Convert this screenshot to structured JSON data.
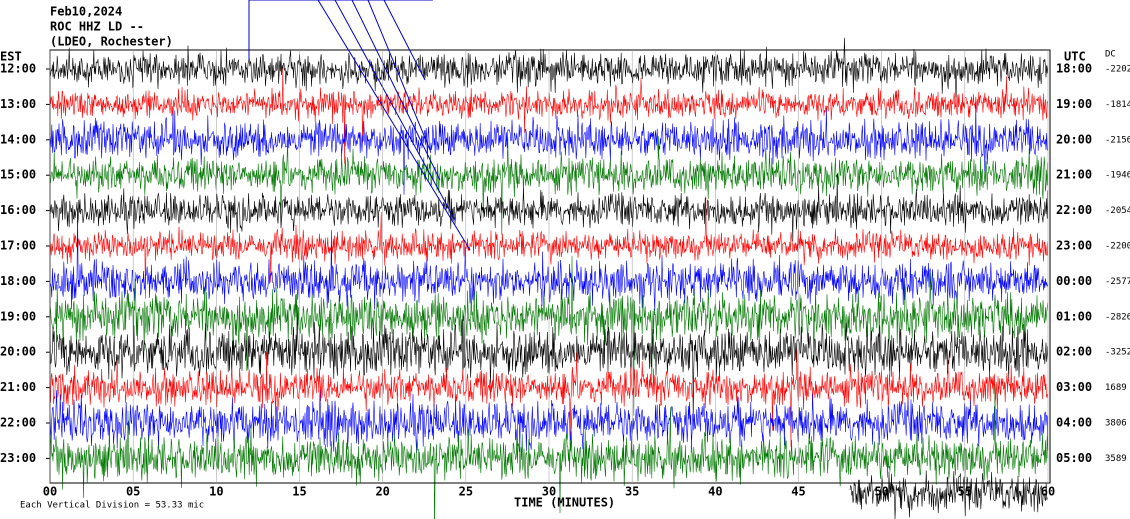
{
  "header": {
    "date": "Feb10,2024",
    "station": "ROC HHZ LD --",
    "network": "(LDEO, Rochester)"
  },
  "left_axis": {
    "title": "EST",
    "labels": [
      "12:00",
      "13:00",
      "14:00",
      "15:00",
      "16:00",
      "17:00",
      "18:00",
      "19:00",
      "20:00",
      "21:00",
      "22:00",
      "23:00"
    ]
  },
  "right_axis": {
    "title": "UTC",
    "labels": [
      "18:00",
      "19:00",
      "20:00",
      "21:00",
      "22:00",
      "23:00",
      "00:00",
      "01:00",
      "02:00",
      "03:00",
      "04:00",
      "05:00"
    ]
  },
  "dc": {
    "title": "DC",
    "values": [
      -2202,
      -1814,
      -2156,
      -1946,
      -2054,
      -2200,
      -2577,
      -2826,
      -3252,
      1689,
      3806,
      3589
    ]
  },
  "x_axis": {
    "title": "TIME (MINUTES)",
    "ticks": [
      "00",
      "05",
      "10",
      "15",
      "20",
      "25",
      "30",
      "35",
      "40",
      "45",
      "50",
      "55",
      "60"
    ]
  },
  "footer": {
    "scale": "Each Vertical Division = 53.33 mic"
  }
}
